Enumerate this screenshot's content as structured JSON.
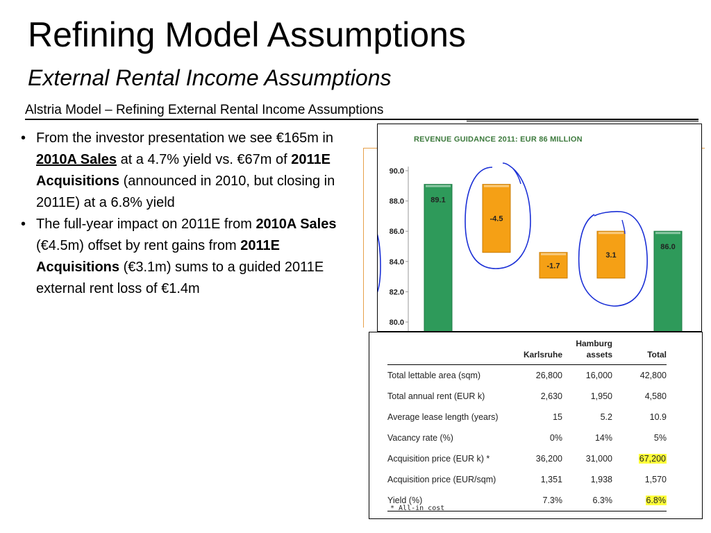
{
  "slide": {
    "title": "Refining Model Assumptions",
    "subtitle": "External Rental Income Assumptions",
    "caption": "Alstria Model – Refining External Rental Income Assumptions"
  },
  "bullets": [
    {
      "parts": [
        {
          "text": "From the investor presentation we see €165m in ",
          "style": ""
        },
        {
          "text": "2010A Sales",
          "style": "bu"
        },
        {
          "text": " at a 4.7% yield vs. €67m of ",
          "style": ""
        },
        {
          "text": "2011E Acquisitions",
          "style": "b"
        },
        {
          "text": " (announced in 2010, but closing in 2011E) at a 6.8% yield",
          "style": ""
        }
      ]
    },
    {
      "parts": [
        {
          "text": "The full-year impact on 2011E from ",
          "style": ""
        },
        {
          "text": "2010A Sales",
          "style": "b"
        },
        {
          "text": " (€4.5m) offset by rent gains from ",
          "style": ""
        },
        {
          "text": "2011E Acquisitions",
          "style": "b"
        },
        {
          "text": " (€3.1m) sums to a guided 2011E external rent loss of €1.4m",
          "style": ""
        }
      ]
    }
  ],
  "chart_data": {
    "type": "bar",
    "title": "REVENUE GUIDANCE 2011: EUR 86 MILLION",
    "subtype": "waterfall",
    "ylim": [
      80,
      90
    ],
    "yticks": [
      "80.0",
      "82.0",
      "84.0",
      "86.0",
      "88.0",
      "90.0"
    ],
    "ytick_values": [
      80,
      82,
      84,
      86,
      88,
      90
    ],
    "bars": [
      {
        "label": "89.1",
        "start": 0,
        "end": 89.1,
        "kind": "total",
        "color": "#2e9a5a"
      },
      {
        "label": "-4.5",
        "start": 89.1,
        "end": 84.6,
        "kind": "delta",
        "color": "#f5a015"
      },
      {
        "label": "-1.7",
        "start": 84.6,
        "end": 82.9,
        "kind": "delta",
        "color": "#f5a015"
      },
      {
        "label": "3.1",
        "start": 82.9,
        "end": 86.0,
        "kind": "delta",
        "color": "#f5a015"
      },
      {
        "label": "86.0",
        "start": 0,
        "end": 86.0,
        "kind": "total",
        "color": "#2e9a5a"
      }
    ],
    "circled": [
      "-4.5",
      "3.1"
    ],
    "annotation_color": "#1a2fd6"
  },
  "table": {
    "headers": [
      "",
      "Karlsruhe",
      "Hamburg assets",
      "Total"
    ],
    "header_hamburg_line1": "Hamburg",
    "header_hamburg_line2": "assets",
    "rows": [
      {
        "label": "Total lettable area (sqm)",
        "values": [
          "26,800",
          "16,000",
          "42,800"
        ],
        "highlight_total": false
      },
      {
        "label": "Total annual rent (EUR k)",
        "values": [
          "2,630",
          "1,950",
          "4,580"
        ],
        "highlight_total": false
      },
      {
        "label": "Average lease length (years)",
        "values": [
          "15",
          "5.2",
          "10.9"
        ],
        "highlight_total": false
      },
      {
        "label": "Vacancy rate (%)",
        "values": [
          "0%",
          "14%",
          "5%"
        ],
        "highlight_total": false
      },
      {
        "label": "Acquisition price (EUR k) *",
        "values": [
          "36,200",
          "31,000",
          "67,200"
        ],
        "highlight_total": true
      },
      {
        "label": "Acquisition price  (EUR/sqm)",
        "values": [
          "1,351",
          "1,938",
          "1,570"
        ],
        "highlight_total": false
      },
      {
        "label": "Yield (%)",
        "values": [
          "7.3%",
          "6.3%",
          "6.8%"
        ],
        "highlight_total": true
      }
    ],
    "footnote": "* All-in cost"
  }
}
